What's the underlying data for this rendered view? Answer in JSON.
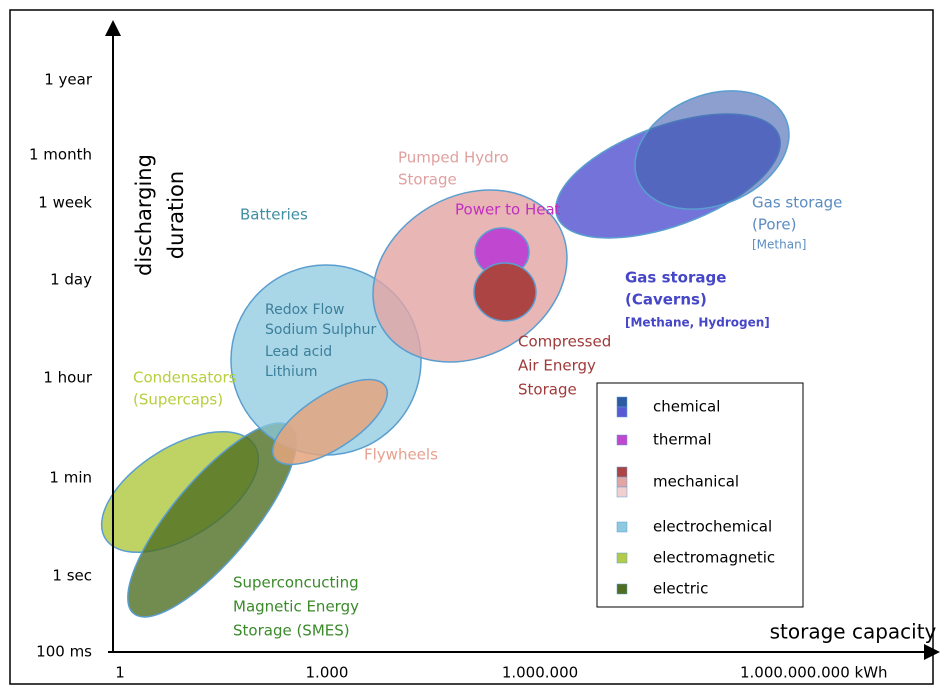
{
  "axes": {
    "y_label": [
      "discharging",
      "duration"
    ],
    "x_label": "storage capacity",
    "y_ticks": [
      "1 year",
      "1 month",
      "1 week",
      "1 day",
      "1 hour",
      "1 min",
      "1 sec",
      "100 ms"
    ],
    "x_ticks": [
      "1",
      "1.000",
      "1.000.000",
      "1.000.000.000 kWh"
    ]
  },
  "labels": {
    "batteries": [
      "Batteries"
    ],
    "battery_types": [
      "Redox Flow",
      "Sodium Sulphur",
      "Lead acid",
      "Lithium"
    ],
    "condensators": [
      "Condensators",
      "(Supercaps)"
    ],
    "flywheels": [
      "Flywheels"
    ],
    "pumped_hydro": [
      "Pumped Hydro",
      "Storage"
    ],
    "power_to_heat": [
      "Power to Heat"
    ],
    "compressed_air": [
      "Compressed",
      "Air Energy",
      "Storage"
    ],
    "gas_pore": [
      "Gas storage",
      "(Pore)",
      "[Methan]"
    ],
    "gas_caverns": [
      "Gas storage",
      "(Caverns)",
      "[Methane, Hydrogen]"
    ],
    "smes": [
      "Superconcucting",
      "Magnetic Energy",
      "Storage (SMES)"
    ]
  },
  "legend": [
    "chemical",
    "thermal",
    "mechanical",
    "electrochemical",
    "electromagnetic",
    "electric"
  ]
}
